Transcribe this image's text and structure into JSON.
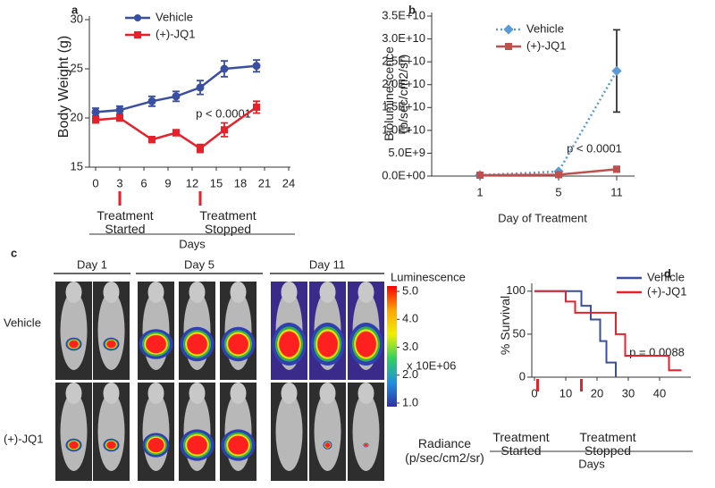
{
  "chart_data": [
    {
      "type": "line",
      "label": "a",
      "xlabel": "Days",
      "ylabel": "Body Weight (g)",
      "x": [
        0,
        3,
        7,
        10,
        13,
        16,
        20
      ],
      "series": [
        {
          "name": "Vehicle",
          "color": "#3a4fa0",
          "marker": "circle",
          "values": [
            20.6,
            20.8,
            21.7,
            22.2,
            23.1,
            25.0,
            25.3
          ],
          "errors": [
            0.4,
            0.4,
            0.5,
            0.5,
            0.7,
            0.8,
            0.6
          ]
        },
        {
          "name": "(+)-JQ1",
          "color": "#e8202a",
          "marker": "square",
          "values": [
            19.8,
            20.0,
            17.8,
            18.5,
            16.9,
            18.8,
            21.1
          ],
          "errors": [
            0.3,
            0.3,
            0.3,
            0.3,
            0.4,
            0.7,
            0.6
          ]
        }
      ],
      "xlim": [
        0,
        24
      ],
      "xticks": [
        0,
        3,
        6,
        9,
        12,
        15,
        18,
        21,
        24
      ],
      "ylim": [
        15,
        30
      ],
      "yticks": [
        15,
        20,
        25,
        30
      ],
      "annotation": "p < 0.0001",
      "treatment_marks": [
        3,
        13
      ],
      "treatment_labels": [
        "Treatment Started",
        "Treatment Stopped"
      ]
    },
    {
      "type": "line",
      "label": "b",
      "xlabel": "Day of Treatment",
      "ylabel": "Bioluminescence (p/sec/cm2/sr)",
      "categories": [
        "1",
        "5",
        "11"
      ],
      "series": [
        {
          "name": "Vehicle",
          "color": "#5b9bd5",
          "marker": "diamond",
          "dash": true,
          "values": [
            200000000,
            1000000000,
            23000000000
          ],
          "errors": [
            0,
            200000000,
            9000000000
          ]
        },
        {
          "name": "(+)-JQ1",
          "color": "#c0504d",
          "marker": "square",
          "values": [
            200000000,
            300000000,
            1500000000
          ],
          "errors": [
            0,
            100000000,
            600000000
          ]
        }
      ],
      "ylim": [
        0,
        35000000000
      ],
      "yticks": [
        {
          "value": 0,
          "label": "0.0E+00"
        },
        {
          "value": 5000000000,
          "label": "5.0E+9"
        },
        {
          "value": 10000000000,
          "label": "1.0E+10"
        },
        {
          "value": 15000000000,
          "label": "1.5E+10"
        },
        {
          "value": 20000000000,
          "label": "2.0E+10"
        },
        {
          "value": 25000000000,
          "label": "2.5E+10"
        },
        {
          "value": 30000000000,
          "label": "3.0E+10"
        },
        {
          "value": 35000000000,
          "label": "3.5E+10"
        }
      ],
      "annotation": "p < 0.0001"
    },
    {
      "type": "step",
      "label": "d",
      "xlabel": "Days",
      "ylabel": "% Survival",
      "series": [
        {
          "name": "Vehicle",
          "color": "#3a4fa0",
          "x": [
            0,
            15,
            18,
            21,
            23,
            26
          ],
          "values": [
            100,
            83,
            67,
            42,
            17,
            0
          ]
        },
        {
          "name": "(+)-JQ1",
          "color": "#e8202a",
          "x": [
            0,
            10,
            13,
            26,
            29,
            43,
            47
          ],
          "values": [
            100,
            88,
            75,
            50,
            25,
            8,
            8
          ]
        }
      ],
      "xlim": [
        0,
        50
      ],
      "xticks": [
        0,
        10,
        20,
        30,
        40
      ],
      "ylim": [
        0,
        105
      ],
      "yticks": [
        0,
        50,
        100
      ],
      "annotation": "p = 0.0088",
      "treatment_marks": [
        1,
        15
      ],
      "treatment_labels": [
        "Treatment Started",
        "Treatment Stopped"
      ]
    }
  ],
  "panel_c": {
    "label": "c",
    "days": [
      "Day 1",
      "Day 5",
      "Day 11"
    ],
    "rows": [
      "Vehicle",
      "(+)-JQ1"
    ],
    "colorbar_title": "Luminescence",
    "colorbar_ticks": [
      {
        "value": 5,
        "label": "5.0"
      },
      {
        "value": 4,
        "label": "4.0"
      },
      {
        "value": 3,
        "label": "3.0"
      },
      {
        "value": 2,
        "label": "2.0"
      },
      {
        "value": 1,
        "label": "1.0"
      }
    ],
    "colorbar_unit": "x 10E+06",
    "radiance_label": "Radiance (p/sec/cm2/sr)"
  }
}
